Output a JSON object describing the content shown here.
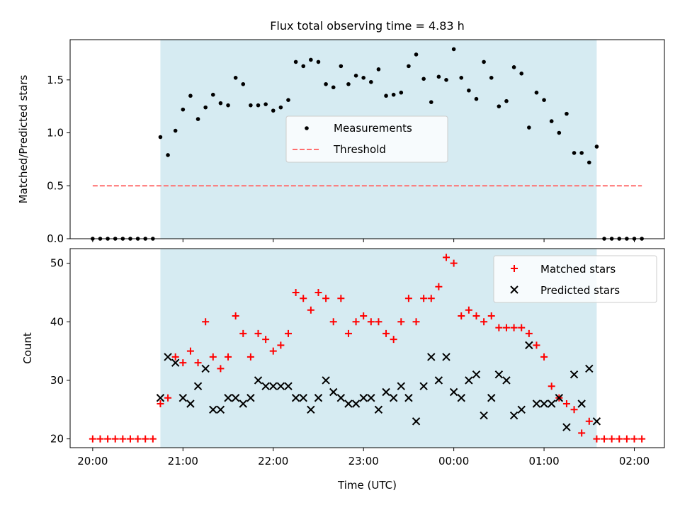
{
  "figure": {
    "title": "Flux total observing time = 4.83 h"
  },
  "colors": {
    "band": "#add8e6",
    "measurement": "#000000",
    "threshold": "#ff6f6f",
    "matched": "#ff0000",
    "predicted": "#000000"
  },
  "chart_data": [
    {
      "type": "scatter",
      "ylabel": "Matched/Predicted stars",
      "ylim": [
        0,
        1.88
      ],
      "yticks": [
        "0.0",
        "0.5",
        "1.0",
        "1.5"
      ],
      "ytick_values": [
        0,
        0.5,
        1.0,
        1.5
      ],
      "grid": false,
      "legend": {
        "position": "center",
        "entries": [
          "Measurements",
          "Threshold"
        ]
      },
      "threshold": 0.5,
      "observing_window": [
        "20:45",
        "01:35"
      ],
      "series": [
        {
          "name": "Measurements",
          "x": [
            "20:00",
            "20:05",
            "20:10",
            "20:15",
            "20:20",
            "20:25",
            "20:30",
            "20:35",
            "20:40",
            "20:45",
            "20:50",
            "20:55",
            "21:00",
            "21:05",
            "21:10",
            "21:15",
            "21:20",
            "21:25",
            "21:30",
            "21:35",
            "21:40",
            "21:45",
            "21:50",
            "21:55",
            "22:00",
            "22:05",
            "22:10",
            "22:15",
            "22:20",
            "22:25",
            "22:30",
            "22:35",
            "22:40",
            "22:45",
            "22:50",
            "22:55",
            "23:00",
            "23:05",
            "23:10",
            "23:15",
            "23:20",
            "23:25",
            "23:30",
            "23:35",
            "23:40",
            "23:45",
            "23:50",
            "23:55",
            "00:00",
            "00:05",
            "00:10",
            "00:15",
            "00:20",
            "00:25",
            "00:30",
            "00:35",
            "00:40",
            "00:45",
            "00:50",
            "00:55",
            "01:00",
            "01:05",
            "01:10",
            "01:15",
            "01:20",
            "01:25",
            "01:30",
            "01:35",
            "01:40",
            "01:45",
            "01:50",
            "01:55",
            "02:00",
            "02:05"
          ],
          "y": [
            0,
            0,
            0,
            0,
            0,
            0,
            0,
            0,
            0,
            0.96,
            0.79,
            1.02,
            1.22,
            1.35,
            1.13,
            1.24,
            1.36,
            1.28,
            1.26,
            1.52,
            1.46,
            1.26,
            1.26,
            1.27,
            1.21,
            1.24,
            1.31,
            1.67,
            1.63,
            1.69,
            1.67,
            1.46,
            1.43,
            1.63,
            1.46,
            1.54,
            1.52,
            1.48,
            1.6,
            1.35,
            1.36,
            1.38,
            1.63,
            1.74,
            1.51,
            1.29,
            1.53,
            1.5,
            1.79,
            1.52,
            1.4,
            1.32,
            1.67,
            1.52,
            1.25,
            1.3,
            1.62,
            1.56,
            1.05,
            1.38,
            1.31,
            1.11,
            1.0,
            1.18,
            0.81,
            0.81,
            0.72,
            0.87,
            0,
            0,
            0,
            0,
            0,
            0
          ]
        }
      ]
    },
    {
      "type": "scatter",
      "xlabel": "Time (UTC)",
      "ylabel": "Count",
      "ylim": [
        18.5,
        52.5
      ],
      "yticks": [
        "20",
        "30",
        "40",
        "50"
      ],
      "ytick_values": [
        20,
        30,
        40,
        50
      ],
      "xticks": [
        "20:00",
        "21:00",
        "22:00",
        "23:00",
        "00:00",
        "01:00",
        "02:00"
      ],
      "xtick_values": [
        "20:00",
        "21:00",
        "22:00",
        "23:00",
        "00:00",
        "01:00",
        "02:00"
      ],
      "xlim": [
        "19:45",
        "02:20"
      ],
      "grid": false,
      "legend": {
        "position": "top-right",
        "entries": [
          "Matched stars",
          "Predicted stars"
        ]
      },
      "observing_window": [
        "20:45",
        "01:35"
      ],
      "series": [
        {
          "name": "Matched stars",
          "x": [
            "20:00",
            "20:05",
            "20:10",
            "20:15",
            "20:20",
            "20:25",
            "20:30",
            "20:35",
            "20:40",
            "20:45",
            "20:50",
            "20:55",
            "21:00",
            "21:05",
            "21:10",
            "21:15",
            "21:20",
            "21:25",
            "21:30",
            "21:35",
            "21:40",
            "21:45",
            "21:50",
            "21:55",
            "22:00",
            "22:05",
            "22:10",
            "22:15",
            "22:20",
            "22:25",
            "22:30",
            "22:35",
            "22:40",
            "22:45",
            "22:50",
            "22:55",
            "23:00",
            "23:05",
            "23:10",
            "23:15",
            "23:20",
            "23:25",
            "23:30",
            "23:35",
            "23:40",
            "23:45",
            "23:50",
            "23:55",
            "00:00",
            "00:05",
            "00:10",
            "00:15",
            "00:20",
            "00:25",
            "00:30",
            "00:35",
            "00:40",
            "00:45",
            "00:50",
            "00:55",
            "01:00",
            "01:05",
            "01:10",
            "01:15",
            "01:20",
            "01:25",
            "01:30",
            "01:35",
            "01:40",
            "01:45",
            "01:50",
            "01:55",
            "02:00",
            "02:05"
          ],
          "y": [
            20,
            20,
            20,
            20,
            20,
            20,
            20,
            20,
            20,
            26,
            27,
            34,
            33,
            35,
            33,
            40,
            34,
            32,
            34,
            41,
            38,
            34,
            38,
            37,
            35,
            36,
            38,
            45,
            44,
            42,
            45,
            44,
            40,
            44,
            38,
            40,
            41,
            40,
            40,
            38,
            37,
            40,
            44,
            40,
            44,
            44,
            46,
            51,
            50,
            41,
            42,
            41,
            40,
            41,
            39,
            39,
            39,
            39,
            38,
            36,
            34,
            29,
            27,
            26,
            25,
            21,
            23,
            20,
            20,
            20,
            20,
            20,
            20,
            20
          ]
        },
        {
          "name": "Predicted stars",
          "x": [
            "20:45",
            "20:50",
            "20:55",
            "21:00",
            "21:05",
            "21:10",
            "21:15",
            "21:20",
            "21:25",
            "21:30",
            "21:35",
            "21:40",
            "21:45",
            "21:50",
            "21:55",
            "22:00",
            "22:05",
            "22:10",
            "22:15",
            "22:20",
            "22:25",
            "22:30",
            "22:35",
            "22:40",
            "22:45",
            "22:50",
            "22:55",
            "23:00",
            "23:05",
            "23:10",
            "23:15",
            "23:20",
            "23:25",
            "23:30",
            "23:35",
            "23:40",
            "23:45",
            "23:50",
            "23:55",
            "00:00",
            "00:05",
            "00:10",
            "00:15",
            "00:20",
            "00:25",
            "00:30",
            "00:35",
            "00:40",
            "00:45",
            "00:50",
            "00:55",
            "01:00",
            "01:05",
            "01:10",
            "01:15",
            "01:20",
            "01:25",
            "01:30",
            "01:35"
          ],
          "y": [
            27,
            34,
            33,
            27,
            26,
            29,
            32,
            25,
            25,
            27,
            27,
            26,
            27,
            30,
            29,
            29,
            29,
            29,
            27,
            27,
            25,
            27,
            30,
            28,
            27,
            26,
            26,
            27,
            27,
            25,
            28,
            27,
            29,
            27,
            23,
            29,
            34,
            30,
            34,
            28,
            27,
            30,
            31,
            24,
            27,
            31,
            30,
            24,
            25,
            36,
            26,
            26,
            26,
            27,
            22,
            31,
            26,
            32,
            23
          ]
        }
      ]
    }
  ]
}
